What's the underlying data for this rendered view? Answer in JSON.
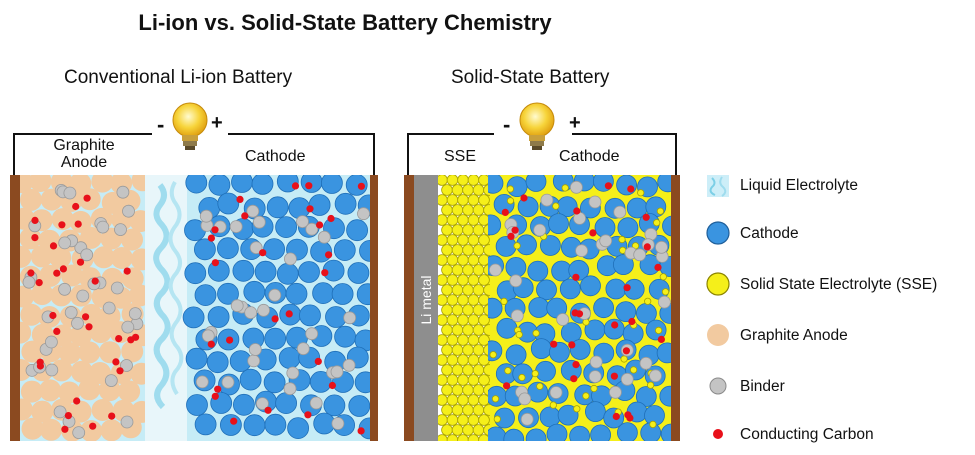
{
  "title": "Li-ion vs. Solid-State Battery Chemistry",
  "panels": {
    "left": {
      "title": "Conventional Li-ion Battery",
      "anode_label": "Graphite\nAnode",
      "cathode_label": "Cathode",
      "minus": "-",
      "plus": "+"
    },
    "right": {
      "title": "Solid-State Battery",
      "sse_label": "SSE",
      "cathode_label": "Cathode",
      "li_metal_label": "Li metal",
      "minus": "-",
      "plus": "+"
    }
  },
  "legend": [
    {
      "label": "Liquid Electrolyte",
      "icon": "liquid-electrolyte-swatch",
      "color": "#cdeef8"
    },
    {
      "label": "Cathode",
      "icon": "cathode-circle",
      "color": "#3a94e0"
    },
    {
      "label": "Solid State Electrolyte (SSE)",
      "icon": "sse-circle",
      "color": "#f5ef1a"
    },
    {
      "label": "Graphite Anode",
      "icon": "graphite-circle",
      "color": "#f2caa0"
    },
    {
      "label": "Binder",
      "icon": "binder-circle",
      "color": "#c4c4c4"
    },
    {
      "label": "Conducting Carbon",
      "icon": "carbon-dot",
      "color": "#e8101a"
    }
  ],
  "colors": {
    "current_collector": "#8b4a20",
    "li_metal": "#8e8e8e",
    "liquid_bg": "#c6ecf6",
    "bulb": "#f6c31c"
  }
}
